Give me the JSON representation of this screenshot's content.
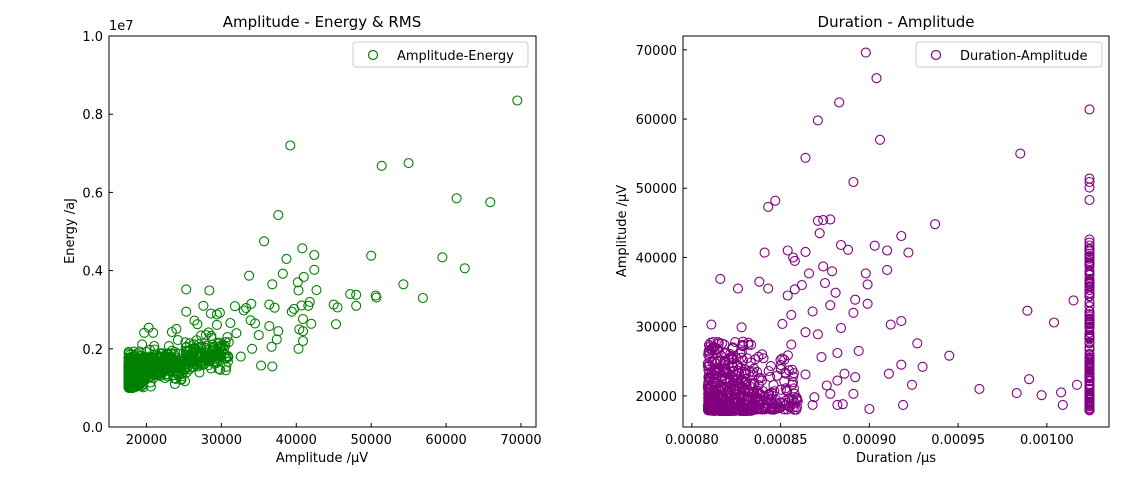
{
  "chart_data": [
    {
      "type": "scatter",
      "title": "Amplitude - Energy & RMS",
      "xlabel": "Amplitude /μV",
      "ylabel": "Energy /aJ",
      "xlim": [
        15000,
        72000
      ],
      "ylim": [
        0,
        10000000
      ],
      "y_multiplier_label": "1e7",
      "x_ticks": [
        20000,
        30000,
        40000,
        50000,
        60000,
        70000
      ],
      "x_tick_labels": [
        "20000",
        "30000",
        "40000",
        "50000",
        "60000",
        "70000"
      ],
      "y_ticks": [
        0,
        2000000,
        4000000,
        6000000,
        8000000,
        10000000
      ],
      "y_tick_labels": [
        "0.0",
        "0.2",
        "0.4",
        "0.6",
        "0.8",
        "1.0"
      ],
      "legend": {
        "label": "Amplitude-Energy",
        "position": "upper right"
      },
      "marker": "hollow-circle",
      "color": "#008000",
      "series": [
        {
          "name": "Amplitude-Energy",
          "points": [
            [
              69500,
              8350000
            ],
            [
              39200,
              7200000
            ],
            [
              55000,
              6750000
            ],
            [
              51400,
              6680000
            ],
            [
              61400,
              5850000
            ],
            [
              65900,
              5750000
            ],
            [
              37600,
              5420000
            ],
            [
              35700,
              4750000
            ],
            [
              40800,
              4570000
            ],
            [
              42400,
              4400000
            ],
            [
              50000,
              4380000
            ],
            [
              59500,
              4340000
            ],
            [
              38700,
              4300000
            ],
            [
              62500,
              4060000
            ],
            [
              42400,
              4020000
            ],
            [
              38200,
              3920000
            ],
            [
              33700,
              3870000
            ],
            [
              41000,
              3840000
            ],
            [
              40200,
              3700000
            ],
            [
              36800,
              3650000
            ],
            [
              54300,
              3650000
            ],
            [
              42700,
              3500000
            ],
            [
              25300,
              3520000
            ],
            [
              28400,
              3490000
            ],
            [
              40300,
              3490000
            ],
            [
              47200,
              3400000
            ],
            [
              48000,
              3380000
            ],
            [
              50600,
              3360000
            ],
            [
              50700,
              3310000
            ],
            [
              56900,
              3300000
            ],
            [
              41800,
              3200000
            ],
            [
              45000,
              3130000
            ],
            [
              45500,
              3060000
            ],
            [
              48000,
              3100000
            ],
            [
              36400,
              3130000
            ],
            [
              40700,
              3110000
            ],
            [
              41600,
              3100000
            ],
            [
              34000,
              3150000
            ],
            [
              27600,
              3100000
            ],
            [
              39400,
              2950000
            ],
            [
              39700,
              3020000
            ],
            [
              37100,
              3050000
            ],
            [
              33000,
              2980000
            ],
            [
              29800,
              2920000
            ],
            [
              33300,
              3040000
            ],
            [
              31800,
              3090000
            ],
            [
              29400,
              2880000
            ],
            [
              28600,
              2900000
            ],
            [
              25300,
              2950000
            ],
            [
              45300,
              2630000
            ],
            [
              42000,
              2640000
            ],
            [
              40900,
              2760000
            ],
            [
              40400,
              2500000
            ],
            [
              40900,
              2450000
            ],
            [
              37600,
              2450000
            ],
            [
              34500,
              2650000
            ],
            [
              36400,
              2580000
            ],
            [
              33900,
              2730000
            ],
            [
              31200,
              2660000
            ],
            [
              29400,
              2610000
            ],
            [
              26800,
              2630000
            ],
            [
              26400,
              2720000
            ],
            [
              24000,
              2510000
            ],
            [
              23400,
              2430000
            ],
            [
              20300,
              2540000
            ],
            [
              19700,
              2410000
            ],
            [
              20900,
              2410000
            ],
            [
              40300,
              2000000
            ],
            [
              36700,
              2050000
            ],
            [
              36800,
              1550000
            ],
            [
              35300,
              1570000
            ],
            [
              40900,
              2200000
            ],
            [
              32600,
              1800000
            ],
            [
              30600,
              1450000
            ],
            [
              28600,
              1500000
            ],
            [
              29800,
              2000000
            ],
            [
              28300,
              2420000
            ],
            [
              26700,
              2220000
            ],
            [
              27700,
              2040000
            ],
            [
              30800,
              2300000
            ],
            [
              32000,
              2400000
            ],
            [
              34100,
              2000000
            ],
            [
              35000,
              2350000
            ],
            [
              37400,
              2240000
            ],
            [
              27100,
              1780000
            ],
            [
              23800,
              1100000
            ]
          ]
        }
      ],
      "dense_clusters": [
        {
          "x_range": [
            17600,
            31000
          ],
          "y_center_at_x_min": 1400000,
          "slope_per_uV": 38,
          "spread": 350000,
          "count": 650
        },
        {
          "x_range": [
            17600,
            19500
          ],
          "y_center_at_x_min": 1300000,
          "slope_per_uV": 60,
          "spread": 300000,
          "count": 250
        }
      ]
    },
    {
      "type": "scatter",
      "title": "Duration - Amplitude",
      "xlabel": "Duration /μs",
      "ylabel": "Amplitude /μV",
      "xlim": [
        0.000795,
        0.001035
      ],
      "ylim": [
        15500,
        72000
      ],
      "x_ticks": [
        0.0008,
        0.00085,
        0.0009,
        0.00095,
        0.001
      ],
      "x_tick_labels": [
        "0.00080",
        "0.00085",
        "0.00090",
        "0.00095",
        "0.00100"
      ],
      "y_ticks": [
        20000,
        30000,
        40000,
        50000,
        60000,
        70000
      ],
      "y_tick_labels": [
        "20000",
        "30000",
        "40000",
        "50000",
        "60000",
        "70000"
      ],
      "legend": {
        "label": "Duration-Amplitude",
        "position": "upper right"
      },
      "marker": "hollow-circle",
      "color": "#800080",
      "series": [
        {
          "name": "Duration-Amplitude",
          "points": [
            [
              0.000898,
              69600
            ],
            [
              0.000904,
              65900
            ],
            [
              0.000883,
              62400
            ],
            [
              0.000906,
              57000
            ],
            [
              0.000871,
              59800
            ],
            [
              0.000864,
              54400
            ],
            [
              0.000985,
              55000
            ],
            [
              0.000891,
              50900
            ],
            [
              0.000843,
              47300
            ],
            [
              0.000847,
              48200
            ],
            [
              0.000937,
              44800
            ],
            [
              0.000871,
              45300
            ],
            [
              0.000874,
              45400
            ],
            [
              0.000878,
              45500
            ],
            [
              0.000872,
              43500
            ],
            [
              0.000918,
              43100
            ],
            [
              0.000884,
              41800
            ],
            [
              0.000903,
              41700
            ],
            [
              0.00091,
              41000
            ],
            [
              0.000888,
              41100
            ],
            [
              0.000854,
              41000
            ],
            [
              0.000864,
              40800
            ],
            [
              0.000841,
              40700
            ],
            [
              0.000922,
              40700
            ],
            [
              0.000857,
              40000
            ],
            [
              0.000858,
              39500
            ],
            [
              0.000874,
              38700
            ],
            [
              0.000866,
              37700
            ],
            [
              0.000898,
              37700
            ],
            [
              0.00091,
              38200
            ],
            [
              0.000879,
              38000
            ],
            [
              0.000816,
              36900
            ],
            [
              0.000838,
              36500
            ],
            [
              0.000899,
              36100
            ],
            [
              0.000862,
              36000
            ],
            [
              0.000875,
              36300
            ],
            [
              0.000826,
              35500
            ],
            [
              0.000843,
              35500
            ],
            [
              0.000858,
              35400
            ],
            [
              0.000881,
              34900
            ],
            [
              0.000892,
              33900
            ],
            [
              0.000854,
              34500
            ],
            [
              0.000878,
              33100
            ],
            [
              0.000899,
              33300
            ],
            [
              0.000989,
              32300
            ],
            [
              0.000868,
              32200
            ],
            [
              0.000891,
              32000
            ],
            [
              0.000856,
              31700
            ],
            [
              0.000918,
              30800
            ],
            [
              0.000912,
              30300
            ],
            [
              0.001004,
              30600
            ],
            [
              0.001015,
              33800
            ],
            [
              0.000811,
              30300
            ],
            [
              0.000851,
              30400
            ],
            [
              0.000828,
              29900
            ],
            [
              0.000884,
              29800
            ],
            [
              0.000864,
              29200
            ],
            [
              0.000871,
              28900
            ],
            [
              0.000927,
              27600
            ],
            [
              0.000856,
              27400
            ],
            [
              0.000894,
              26500
            ],
            [
              0.000882,
              26200
            ],
            [
              0.000945,
              25800
            ],
            [
              0.000873,
              25600
            ],
            [
              0.000918,
              24500
            ],
            [
              0.00093,
              24200
            ],
            [
              0.000886,
              23200
            ],
            [
              0.000864,
              23100
            ],
            [
              0.000882,
              22200
            ],
            [
              0.000892,
              22700
            ],
            [
              0.000924,
              21600
            ],
            [
              0.000911,
              23200
            ],
            [
              0.000962,
              21000
            ],
            [
              0.00099,
              22400
            ],
            [
              0.001017,
              21600
            ],
            [
              0.000876,
              21500
            ],
            [
              0.000878,
              20300
            ],
            [
              0.000882,
              18700
            ],
            [
              0.000868,
              18700
            ],
            [
              0.000869,
              19800
            ],
            [
              0.000885,
              18800
            ],
            [
              0.0009,
              18100
            ],
            [
              0.000919,
              18700
            ],
            [
              0.000983,
              20400
            ],
            [
              0.000997,
              20100
            ],
            [
              0.001008,
              20500
            ],
            [
              0.001009,
              18700
            ],
            [
              0.000891,
              20300
            ],
            [
              0.000852,
              22100
            ]
          ]
        }
      ],
      "dense_clusters": [
        {
          "x_range": [
            0.000809,
            0.000835
          ],
          "y_range": [
            17800,
            28000
          ],
          "count": 400
        },
        {
          "x_range": [
            0.000835,
            0.00086
          ],
          "y_range": [
            18000,
            26000
          ],
          "count": 120
        },
        {
          "x_column": 0.001024,
          "y_range": [
            17900,
            43500
          ],
          "count": 150
        }
      ],
      "column_outliers": [
        61400,
        51400,
        50900,
        50100,
        48300
      ]
    }
  ]
}
